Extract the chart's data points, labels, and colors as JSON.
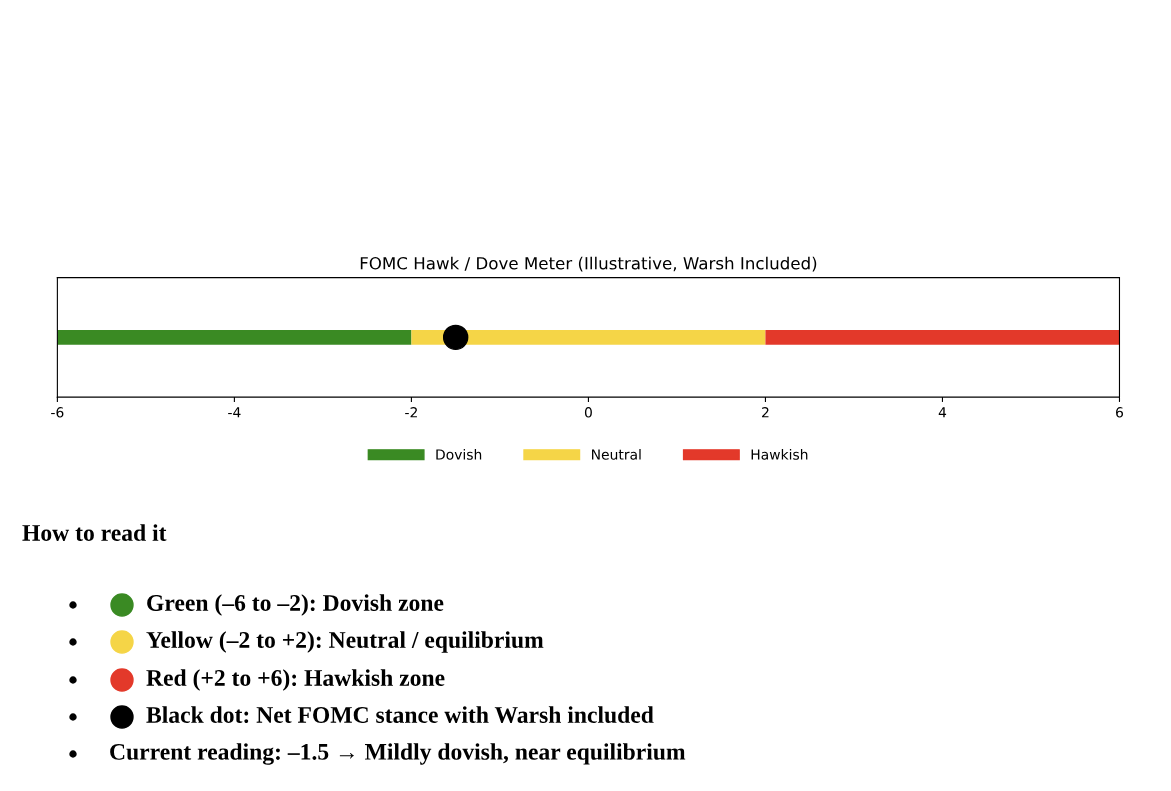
{
  "chart_data": {
    "type": "bar",
    "orientation": "horizontal",
    "title": "FOMC Hawk / Dove Meter (Illustrative, Warsh Included)",
    "categories": [
      null
    ],
    "series": [
      {
        "name": "Dovish",
        "color": "#3a8a23",
        "base": [
          -6
        ],
        "values": [
          4
        ]
      },
      {
        "name": "Neutral",
        "color": "#f5d547",
        "base": [
          -2
        ],
        "values": [
          4
        ]
      },
      {
        "name": "Hawkish",
        "color": "#e3392a",
        "base": [
          2
        ],
        "values": [
          4
        ]
      },
      {
        "type": "scatter",
        "color": "#000000",
        "values": [
          -1.5
        ]
      }
    ],
    "xlim": [
      -6,
      6
    ],
    "xticks": [
      -6,
      -4,
      -2,
      0,
      2,
      4,
      6
    ],
    "tick_labels": "x",
    "legend": "bottom",
    "grid": false,
    "annotations": [
      "How to read it",
      "Green (–6 to –2): Dovish zone",
      "Yellow (–2 to +2): Neutral / equilibrium",
      "Red (+2 to +6): Hawkish zone",
      "Black dot: Net FOMC stance with Warsh included",
      "Current reading: –1.5 → Mildly dovish, near equilibrium"
    ]
  }
}
